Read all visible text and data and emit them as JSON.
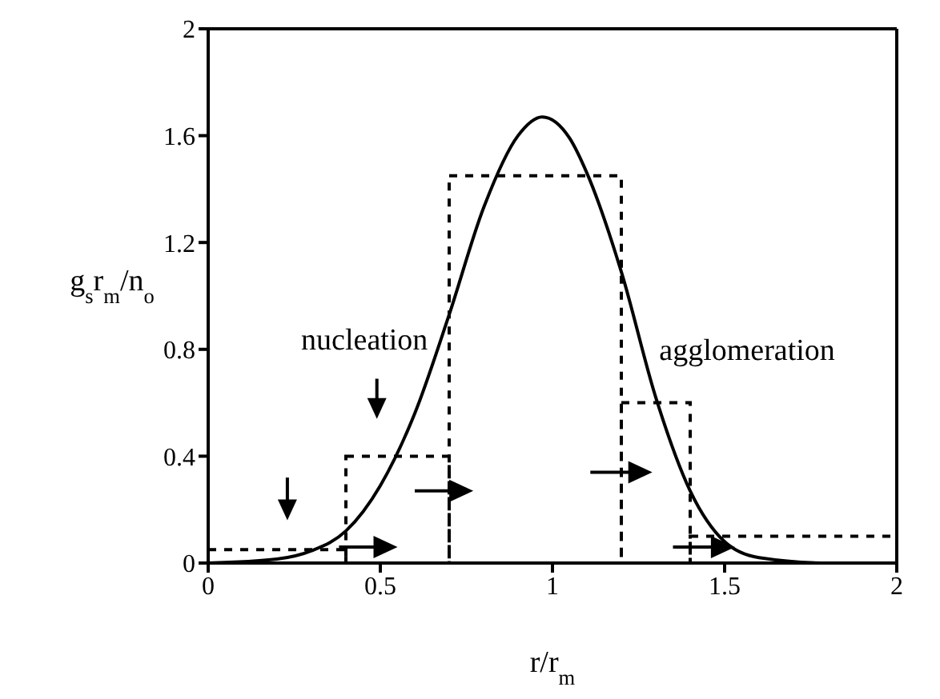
{
  "chart_data": {
    "type": "line",
    "xlabel": "r/r$_{m}$",
    "ylabel": "g$_{s}$r$_{m}$/n$_{o}$",
    "xlim": [
      0,
      2
    ],
    "xticks": [
      0,
      0.5,
      1,
      1.5,
      2
    ],
    "ylim": [
      0,
      2
    ],
    "yticks": [
      0,
      0.4,
      0.8,
      1.2,
      1.6,
      2
    ],
    "marker": "none",
    "series": [
      {
        "type": "line",
        "color": "#000000",
        "line_style": "solid",
        "x": [
          0,
          0.2,
          0.3,
          0.4,
          0.5,
          0.6,
          0.7,
          0.8,
          0.9,
          0.97,
          1.05,
          1.1,
          1.2,
          1.3,
          1.4,
          1.5,
          1.6,
          1.8,
          2
        ],
        "values": [
          0,
          0.015,
          0.046,
          0.12,
          0.29,
          0.56,
          0.93,
          1.33,
          1.6,
          1.67,
          1.59,
          1.46,
          1.09,
          0.62,
          0.27,
          0.08,
          0.02,
          0,
          0
        ]
      },
      {
        "type": "histogram",
        "color": "#000000",
        "line_style": "dashed",
        "bins": [
          0,
          0.4,
          0.7,
          1.2,
          1.4,
          2
        ],
        "values": [
          0.05,
          0.4,
          1.45,
          0.6,
          0.1
        ]
      }
    ],
    "annotations": [
      "nucleation",
      "agglomeration"
    ]
  }
}
